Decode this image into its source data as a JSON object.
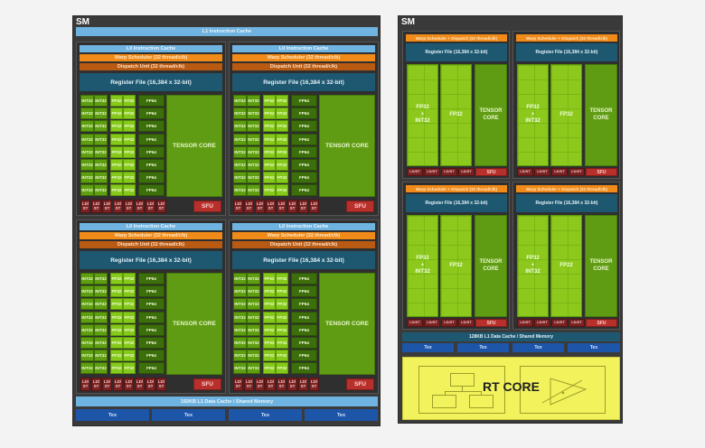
{
  "left_sm": {
    "label": "SM",
    "l1_instruction_cache": "L1 Instruction Cache",
    "quadrants": [
      {
        "id": "q0"
      },
      {
        "id": "q1"
      },
      {
        "id": "q2"
      },
      {
        "id": "q3"
      }
    ],
    "quadrant": {
      "l0_instruction_cache": "L0 Instruction Cache",
      "warp_scheduler": "Warp Scheduler (32 thread/clk)",
      "dispatch_unit": "Dispatch Unit (32 thread/clk)",
      "register_file": "Register File (16,384 x 32-bit)",
      "int32": "INT32",
      "fp32": "FP32",
      "fp64": "FP64",
      "tensor_core": "TENSOR CORE",
      "ldst": "LD/ ST",
      "sfu": "SFU",
      "rows": 8,
      "ldst_count": 8
    },
    "l1_data_cache": "192KB L1 Data Cache / Shared Memory",
    "tex_units": [
      "Tex",
      "Tex",
      "Tex",
      "Tex"
    ]
  },
  "right_sm": {
    "label": "SM",
    "quadrant": {
      "warp_dispatch": "Warp Scheduler + Dispatch (32 thread/clk)",
      "register_file": "Register File (16,384 x 32-bit)",
      "fp32_int32": "FP32 + INT32",
      "fp32": "FP32",
      "fp32_typo": "FP22",
      "tensor_core": "TENSOR CORE",
      "ldst": "LD/ST",
      "sfu": "SFU"
    },
    "l1_data_cache": "128KB L1 Data Cache / Shared Memory",
    "tex_units": [
      "Tex",
      "Tex",
      "Tex",
      "Tex"
    ],
    "rt_core": "RT CORE"
  },
  "colors": {
    "sm_bg": "#3a3a3a",
    "cache_blue": "#6fb3e0",
    "warp_orange": "#f08a18",
    "dispatch_brown": "#b85a12",
    "register_teal": "#1e5870",
    "int32_green": "#5e9e10",
    "fp32_green": "#86c91a",
    "fp64_green": "#3d6e0c",
    "tensor_green": "#5f9c14",
    "ldst_red": "#7a2222",
    "sfu_red": "#b8302c",
    "tex_blue": "#1d56a8",
    "rt_yellow": "#f1f25c"
  }
}
